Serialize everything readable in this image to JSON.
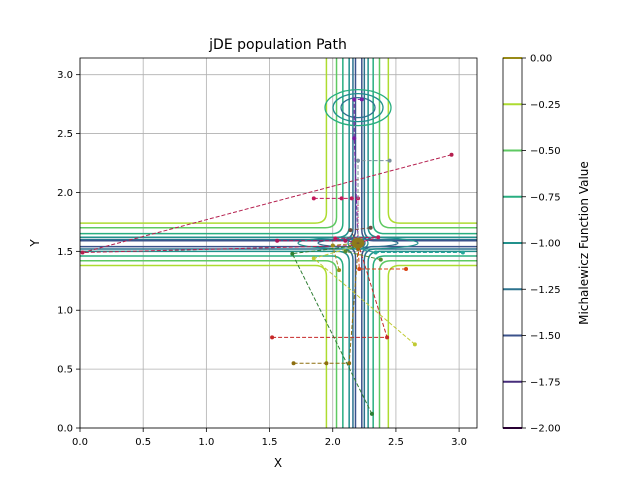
{
  "chart_data": {
    "type": "contour",
    "title": "jDE population Path",
    "xlabel": "X",
    "ylabel": "Y",
    "xlim": [
      0,
      3.1416
    ],
    "ylim": [
      0,
      3.1416
    ],
    "x_ticks": [
      "0.0",
      "0.5",
      "1.0",
      "1.5",
      "2.0",
      "2.5",
      "3.0"
    ],
    "y_ticks": [
      "0.0",
      "0.5",
      "1.0",
      "1.5",
      "2.0",
      "2.5",
      "3.0"
    ],
    "grid": true,
    "colorbar": {
      "label": "Michalewicz Function Value",
      "ticks": [
        "0.00",
        "−0.25",
        "−0.50",
        "−0.75",
        "−1.00",
        "−1.25",
        "−1.50",
        "−1.75",
        "−2.00"
      ],
      "levels": [
        0,
        -0.25,
        -0.5,
        -0.75,
        -1.0,
        -1.25,
        -1.5,
        -1.75,
        -2.0
      ],
      "colors": [
        "#fde725",
        "#addc30",
        "#5ec962",
        "#28ae80",
        "#21918c",
        "#2c728e",
        "#3b528b",
        "#472d7b",
        "#440154"
      ]
    },
    "contour_levels": [
      {
        "level": -0.25,
        "color": "#addc30",
        "x_band": [
          1.95,
          2.44
        ],
        "y_band": [
          1.38,
          1.74
        ]
      },
      {
        "level": -0.5,
        "color": "#5ec962",
        "x_band": [
          2.03,
          2.37
        ],
        "y_band": [
          1.42,
          1.7
        ]
      },
      {
        "level": -0.75,
        "color": "#28ae80",
        "x_band": [
          2.08,
          2.32
        ],
        "y_band": [
          1.46,
          1.65
        ]
      },
      {
        "level": -1.0,
        "color": "#21918c",
        "x_band": [
          2.13,
          2.28
        ],
        "y_band": [
          1.5,
          1.62
        ]
      },
      {
        "level": -1.25,
        "color": "#2c728e",
        "x_band": [
          2.16,
          2.25
        ],
        "y_band": [
          1.52,
          1.6
        ]
      },
      {
        "level": -1.5,
        "color": "#3b528b",
        "x_band": [
          2.18,
          2.23
        ],
        "y_band": [
          1.54,
          1.59
        ]
      }
    ],
    "paths": [
      {
        "color": "#b5204f",
        "points": [
          [
            2.94,
            2.32
          ],
          [
            0.02,
            1.49
          ],
          [
            2.2,
            1.55
          ]
        ]
      },
      {
        "color": "#c2185b",
        "points": [
          [
            1.85,
            1.95
          ],
          [
            2.07,
            1.95
          ],
          [
            2.15,
            1.95
          ],
          [
            2.2,
            1.95
          ],
          [
            2.2,
            1.57
          ]
        ]
      },
      {
        "color": "#7b1fa2",
        "points": [
          [
            2.23,
            2.79
          ],
          [
            2.17,
            2.79
          ],
          [
            2.17,
            2.46
          ],
          [
            2.2,
            1.57
          ]
        ]
      },
      {
        "color": "#78909c",
        "points": [
          [
            2.45,
            2.27
          ],
          [
            2.2,
            2.27
          ],
          [
            2.2,
            1.58
          ]
        ]
      },
      {
        "color": "#26a69a",
        "points": [
          [
            3.03,
            1.49
          ],
          [
            2.34,
            1.49
          ],
          [
            2.2,
            1.52
          ]
        ]
      },
      {
        "color": "#c62828",
        "points": [
          [
            1.52,
            0.77
          ],
          [
            2.43,
            0.77
          ],
          [
            2.2,
            1.57
          ]
        ]
      },
      {
        "color": "#8d6e0f",
        "points": [
          [
            1.69,
            0.55
          ],
          [
            1.95,
            0.55
          ],
          [
            2.13,
            0.55
          ],
          [
            2.2,
            1.52
          ]
        ]
      },
      {
        "color": "#2e7d32",
        "points": [
          [
            2.31,
            0.12
          ],
          [
            1.68,
            1.48
          ],
          [
            2.2,
            1.55
          ]
        ]
      },
      {
        "color": "#c0ca33",
        "points": [
          [
            2.65,
            0.71
          ],
          [
            1.85,
            1.44
          ],
          [
            2.2,
            1.55
          ]
        ]
      },
      {
        "color": "#ad1457",
        "points": [
          [
            1.56,
            1.59
          ],
          [
            2.1,
            1.59
          ],
          [
            2.2,
            1.57
          ]
        ]
      },
      {
        "color": "#d84315",
        "points": [
          [
            2.58,
            1.35
          ],
          [
            2.21,
            1.35
          ],
          [
            2.2,
            1.57
          ]
        ]
      },
      {
        "color": "#9e8b1c",
        "points": [
          [
            2.05,
            1.34
          ],
          [
            2.0,
            1.55
          ],
          [
            2.2,
            1.57
          ]
        ]
      },
      {
        "color": "#558b2f",
        "points": [
          [
            2.38,
            1.43
          ],
          [
            2.1,
            1.5
          ],
          [
            2.2,
            1.55
          ]
        ]
      },
      {
        "color": "#c2185b",
        "points": [
          [
            2.02,
            1.61
          ],
          [
            2.36,
            1.62
          ],
          [
            2.2,
            1.57
          ]
        ]
      },
      {
        "color": "#6d4c41",
        "points": [
          [
            2.3,
            1.7
          ],
          [
            2.14,
            1.68
          ],
          [
            2.2,
            1.56
          ]
        ]
      }
    ]
  }
}
